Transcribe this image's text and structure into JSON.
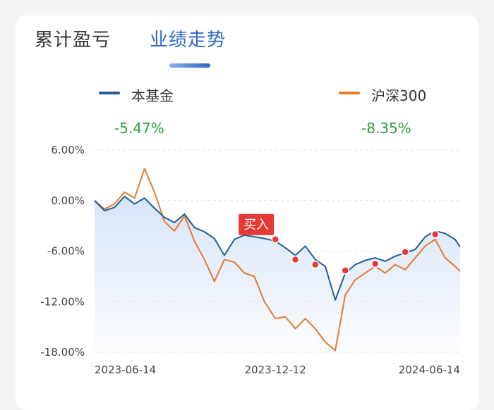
{
  "tabs": {
    "cumulative_pnl": "累计盈亏",
    "performance_trend": "业绩走势"
  },
  "colors": {
    "fund": "#1f5d99",
    "index": "#e67a2e",
    "positive_return": "#2e9e3f",
    "active_tab": "#2b66c3",
    "marker": "#e53935"
  },
  "legend": {
    "fund_label": "本基金",
    "index_label": "沪深300",
    "fund_return": "-5.47%",
    "index_return": "-8.35%"
  },
  "chart_data": {
    "type": "line",
    "x_ticks": [
      "2023-06-14",
      "2023-12-12",
      "2024-06-14"
    ],
    "x": [
      "2023-06-14",
      "2023-06-24",
      "2023-07-04",
      "2023-07-14",
      "2023-07-24",
      "2023-08-03",
      "2023-08-13",
      "2023-08-23",
      "2023-09-02",
      "2023-09-12",
      "2023-09-22",
      "2023-10-02",
      "2023-10-12",
      "2023-10-22",
      "2023-11-01",
      "2023-11-11",
      "2023-11-21",
      "2023-12-01",
      "2023-12-12",
      "2023-12-22",
      "2024-01-01",
      "2024-01-11",
      "2024-01-21",
      "2024-01-31",
      "2024-02-10",
      "2024-02-20",
      "2024-03-01",
      "2024-03-11",
      "2024-03-21",
      "2024-03-31",
      "2024-04-10",
      "2024-04-20",
      "2024-04-30",
      "2024-05-10",
      "2024-05-20",
      "2024-05-30",
      "2024-06-09",
      "2024-06-14"
    ],
    "y_ticks": [
      "6.00%",
      "0.00%",
      "-6.00%",
      "-12.00%",
      "-18.00%"
    ],
    "ylim": [
      -18,
      6
    ],
    "grid": true,
    "series": [
      {
        "name": "本基金",
        "color": "#1f5d99",
        "values": [
          0.0,
          -1.2,
          -0.8,
          0.5,
          -0.4,
          0.3,
          -0.9,
          -2.0,
          -2.6,
          -1.6,
          -3.2,
          -3.7,
          -4.5,
          -6.5,
          -4.6,
          -4.1,
          -4.3,
          -4.5,
          -4.8,
          -5.6,
          -6.5,
          -5.4,
          -7.0,
          -7.8,
          -11.8,
          -8.6,
          -7.6,
          -7.1,
          -6.8,
          -7.2,
          -6.6,
          -6.2,
          -5.8,
          -4.3,
          -3.6,
          -3.9,
          -4.6,
          -5.5
        ]
      },
      {
        "name": "沪深300",
        "color": "#e67a2e",
        "values": [
          0.0,
          -1.0,
          -0.4,
          1.0,
          0.3,
          3.8,
          1.0,
          -2.5,
          -3.6,
          -1.8,
          -4.8,
          -7.0,
          -9.6,
          -7.0,
          -7.3,
          -8.6,
          -9.0,
          -12.0,
          -14.0,
          -13.8,
          -15.2,
          -14.0,
          -15.2,
          -16.8,
          -17.8,
          -11.2,
          -9.4,
          -8.6,
          -7.8,
          -8.6,
          -7.6,
          -8.2,
          -6.8,
          -5.4,
          -4.6,
          -6.8,
          -7.8,
          -8.4
        ]
      }
    ],
    "annotations": [
      {
        "x": "2023-12-12",
        "value": -4.6,
        "label": "买入"
      },
      {
        "x": "2024-01-01",
        "value": -7.0
      },
      {
        "x": "2024-01-21",
        "value": -7.6
      },
      {
        "x": "2024-02-20",
        "value": -8.3
      },
      {
        "x": "2024-03-21",
        "value": -7.5
      },
      {
        "x": "2024-04-20",
        "value": -6.1
      },
      {
        "x": "2024-05-20",
        "value": -4.0
      }
    ]
  }
}
